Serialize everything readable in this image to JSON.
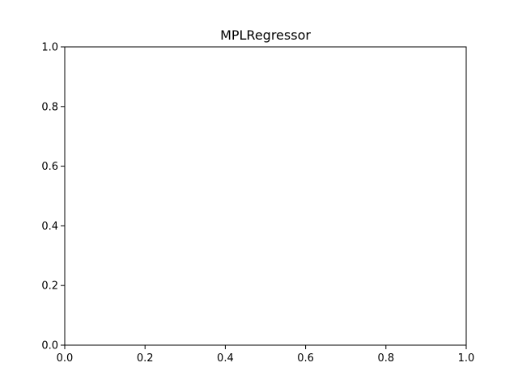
{
  "chart_data": {
    "type": "line",
    "title": "MPLRegressor",
    "xlabel": "",
    "ylabel": "",
    "xlim": [
      0.0,
      1.0
    ],
    "ylim": [
      0.0,
      1.0
    ],
    "xticks": [
      0.0,
      0.2,
      0.4,
      0.6,
      0.8,
      1.0
    ],
    "yticks": [
      0.0,
      0.2,
      0.4,
      0.6,
      0.8,
      1.0
    ],
    "xtick_labels": [
      "0.0",
      "0.2",
      "0.4",
      "0.6",
      "0.8",
      "1.0"
    ],
    "ytick_labels": [
      "0.0",
      "0.2",
      "0.4",
      "0.6",
      "0.8",
      "1.0"
    ],
    "grid": false,
    "series": []
  },
  "colors": {
    "axes": "#000000",
    "background": "#ffffff"
  }
}
